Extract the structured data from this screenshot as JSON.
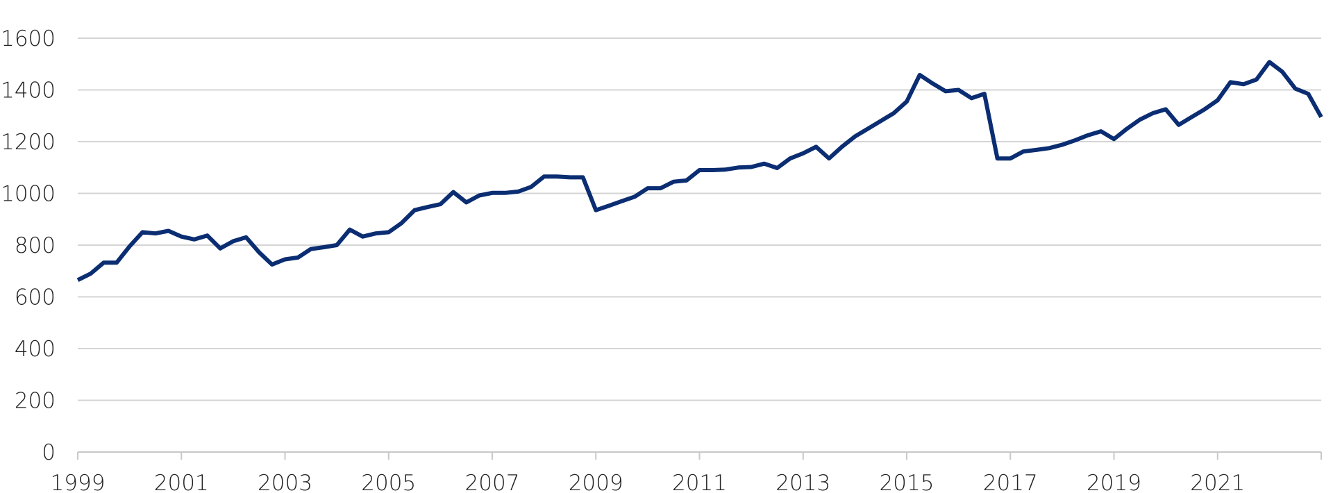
{
  "chart_data": {
    "type": "line",
    "title": "",
    "xlabel": "",
    "ylabel": "",
    "xlim": [
      1999,
      2023
    ],
    "ylim": [
      0,
      1600
    ],
    "grid": true,
    "legend": "none",
    "x_ticks": [
      "1999",
      "2001",
      "2003",
      "2005",
      "2007",
      "2009",
      "2011",
      "2013",
      "2015",
      "2017",
      "2019",
      "2021"
    ],
    "y_ticks": [
      "0",
      "200",
      "400",
      "600",
      "800",
      "1000",
      "1200",
      "1400",
      "1600"
    ],
    "series": [
      {
        "color": "#0b2d72",
        "points": [
          [
            1999.0,
            665
          ],
          [
            1999.25,
            690
          ],
          [
            1999.5,
            732
          ],
          [
            1999.75,
            732
          ],
          [
            2000.0,
            795
          ],
          [
            2000.25,
            850
          ],
          [
            2000.5,
            845
          ],
          [
            2000.75,
            855
          ],
          [
            2001.0,
            833
          ],
          [
            2001.25,
            822
          ],
          [
            2001.5,
            837
          ],
          [
            2001.75,
            787
          ],
          [
            2002.0,
            815
          ],
          [
            2002.25,
            830
          ],
          [
            2002.5,
            772
          ],
          [
            2002.75,
            725
          ],
          [
            2003.0,
            745
          ],
          [
            2003.25,
            752
          ],
          [
            2003.5,
            785
          ],
          [
            2003.75,
            792
          ],
          [
            2004.0,
            800
          ],
          [
            2004.25,
            860
          ],
          [
            2004.5,
            833
          ],
          [
            2004.75,
            845
          ],
          [
            2005.0,
            850
          ],
          [
            2005.25,
            885
          ],
          [
            2005.5,
            935
          ],
          [
            2005.75,
            947
          ],
          [
            2006.0,
            958
          ],
          [
            2006.25,
            1005
          ],
          [
            2006.5,
            965
          ],
          [
            2006.75,
            992
          ],
          [
            2007.0,
            1002
          ],
          [
            2007.25,
            1002
          ],
          [
            2007.5,
            1007
          ],
          [
            2007.75,
            1025
          ],
          [
            2008.0,
            1065
          ],
          [
            2008.25,
            1065
          ],
          [
            2008.5,
            1062
          ],
          [
            2008.75,
            1062
          ],
          [
            2009.0,
            935
          ],
          [
            2009.25,
            952
          ],
          [
            2009.5,
            970
          ],
          [
            2009.75,
            987
          ],
          [
            2010.0,
            1020
          ],
          [
            2010.25,
            1020
          ],
          [
            2010.5,
            1045
          ],
          [
            2010.75,
            1050
          ],
          [
            2011.0,
            1090
          ],
          [
            2011.25,
            1090
          ],
          [
            2011.5,
            1092
          ],
          [
            2011.75,
            1100
          ],
          [
            2012.0,
            1102
          ],
          [
            2012.25,
            1115
          ],
          [
            2012.5,
            1098
          ],
          [
            2012.75,
            1135
          ],
          [
            2013.0,
            1155
          ],
          [
            2013.25,
            1180
          ],
          [
            2013.5,
            1135
          ],
          [
            2013.75,
            1180
          ],
          [
            2014.0,
            1220
          ],
          [
            2014.25,
            1250
          ],
          [
            2014.5,
            1280
          ],
          [
            2014.75,
            1310
          ],
          [
            2015.0,
            1355
          ],
          [
            2015.25,
            1458
          ],
          [
            2015.5,
            1425
          ],
          [
            2015.75,
            1395
          ],
          [
            2016.0,
            1400
          ],
          [
            2016.25,
            1368
          ],
          [
            2016.5,
            1385
          ],
          [
            2016.75,
            1135
          ],
          [
            2017.0,
            1135
          ],
          [
            2017.25,
            1162
          ],
          [
            2017.5,
            1168
          ],
          [
            2017.75,
            1175
          ],
          [
            2018.0,
            1188
          ],
          [
            2018.25,
            1205
          ],
          [
            2018.5,
            1225
          ],
          [
            2018.75,
            1240
          ],
          [
            2019.0,
            1210
          ],
          [
            2019.25,
            1250
          ],
          [
            2019.5,
            1285
          ],
          [
            2019.75,
            1310
          ],
          [
            2020.0,
            1325
          ],
          [
            2020.25,
            1265
          ],
          [
            2020.5,
            1295
          ],
          [
            2020.75,
            1325
          ],
          [
            2021.0,
            1360
          ],
          [
            2021.25,
            1430
          ],
          [
            2021.5,
            1422
          ],
          [
            2021.75,
            1440
          ],
          [
            2022.0,
            1508
          ],
          [
            2022.25,
            1470
          ],
          [
            2022.5,
            1405
          ],
          [
            2022.75,
            1385
          ],
          [
            2023.0,
            1295
          ]
        ]
      }
    ]
  }
}
